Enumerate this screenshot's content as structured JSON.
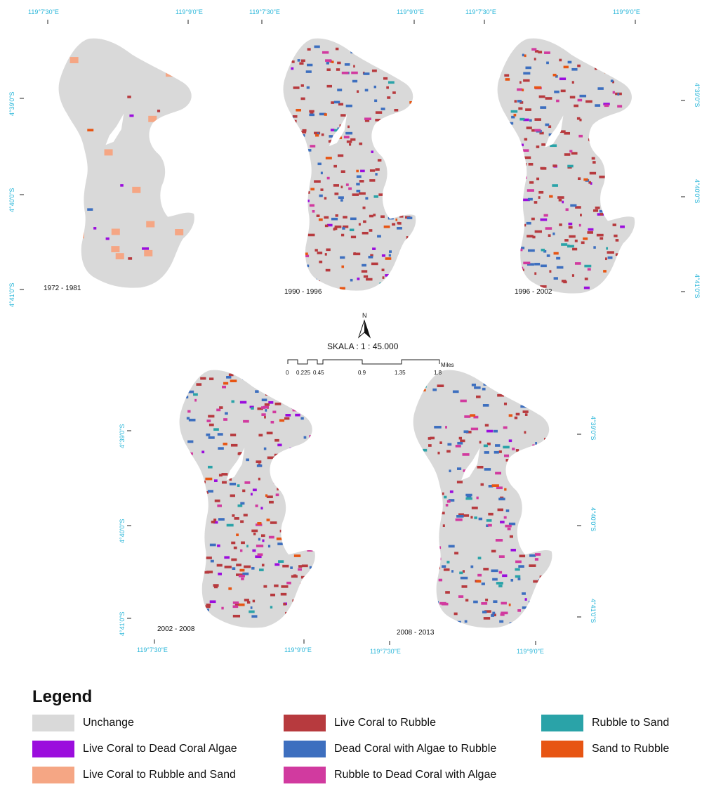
{
  "panels": [
    {
      "period": "1972 - 1981",
      "seed": 11,
      "counts": {
        "live_coral_to_dead_coral_algae": 6,
        "live_coral_to_rubble_and_sand": 14,
        "live_coral_to_rubble": 4,
        "dead_coral_algae_to_rubble": 2,
        "rubble_to_dead_coral_algae": 0,
        "rubble_to_sand": 0,
        "sand_to_rubble": 1
      }
    },
    {
      "period": "1990 - 1996",
      "seed": 23,
      "counts": {
        "live_coral_to_dead_coral_algae": 14,
        "live_coral_to_rubble_and_sand": 0,
        "live_coral_to_rubble": 130,
        "dead_coral_algae_to_rubble": 60,
        "rubble_to_dead_coral_algae": 18,
        "rubble_to_sand": 8,
        "sand_to_rubble": 20
      }
    },
    {
      "period": "1996 - 2002",
      "seed": 37,
      "counts": {
        "live_coral_to_dead_coral_algae": 20,
        "live_coral_to_rubble": 120,
        "live_coral_to_rubble_and_sand": 0,
        "dead_coral_algae_to_rubble": 55,
        "rubble_to_dead_coral_algae": 30,
        "rubble_to_sand": 14,
        "sand_to_rubble": 18
      }
    },
    {
      "period": "2002 - 2008",
      "seed": 41,
      "counts": {
        "live_coral_to_dead_coral_algae": 28,
        "live_coral_to_rubble_and_sand": 0,
        "live_coral_to_rubble": 110,
        "dead_coral_algae_to_rubble": 55,
        "rubble_to_dead_coral_algae": 45,
        "rubble_to_sand": 14,
        "sand_to_rubble": 18
      }
    },
    {
      "period": "2008 - 2013",
      "seed": 59,
      "counts": {
        "live_coral_to_dead_coral_algae": 10,
        "live_coral_to_rubble_and_sand": 0,
        "live_coral_to_rubble": 85,
        "dead_coral_algae_to_rubble": 75,
        "rubble_to_dead_coral_algae": 55,
        "rubble_to_sand": 18,
        "sand_to_rubble": 10
      }
    }
  ],
  "coordinates": {
    "lon_a": "119°7'30\"E",
    "lon_b": "119°9'0\"E",
    "lat_a": "4°39'0\"S",
    "lat_b": "4°40'0\"S",
    "lat_c": "4°41'0\"S"
  },
  "north_arrow": {
    "label": "N"
  },
  "scale": {
    "text": "SKALA : 1 : 45.000",
    "ticks": [
      "0",
      "0.225",
      "0.45",
      "0.9",
      "1.35",
      "1.8"
    ],
    "unit": "Miles"
  },
  "legend": {
    "title": "Legend",
    "items": [
      {
        "key": "unchange",
        "label": "Unchange",
        "color": "#d9d9d9"
      },
      {
        "key": "live_coral_to_dead_coral_algae",
        "label": "Live Coral to Dead Coral Algae",
        "color": "#9b0ddd"
      },
      {
        "key": "live_coral_to_rubble_and_sand",
        "label": "Live Coral to Rubble and Sand",
        "color": "#f5a684"
      },
      {
        "key": "live_coral_to_rubble",
        "label": "Live Coral to Rubble",
        "color": "#b73a3e"
      },
      {
        "key": "dead_coral_algae_to_rubble",
        "label": "Dead Coral with Algae to Rubble",
        "color": "#3d6fbf"
      },
      {
        "key": "rubble_to_dead_coral_algae",
        "label": "Rubble to Dead Coral with Algae",
        "color": "#d13a9f"
      },
      {
        "key": "rubble_to_sand",
        "label": "Rubble to Sand",
        "color": "#2aa3a8"
      },
      {
        "key": "sand_to_rubble",
        "label": "Sand to Rubble",
        "color": "#e75513"
      }
    ]
  }
}
